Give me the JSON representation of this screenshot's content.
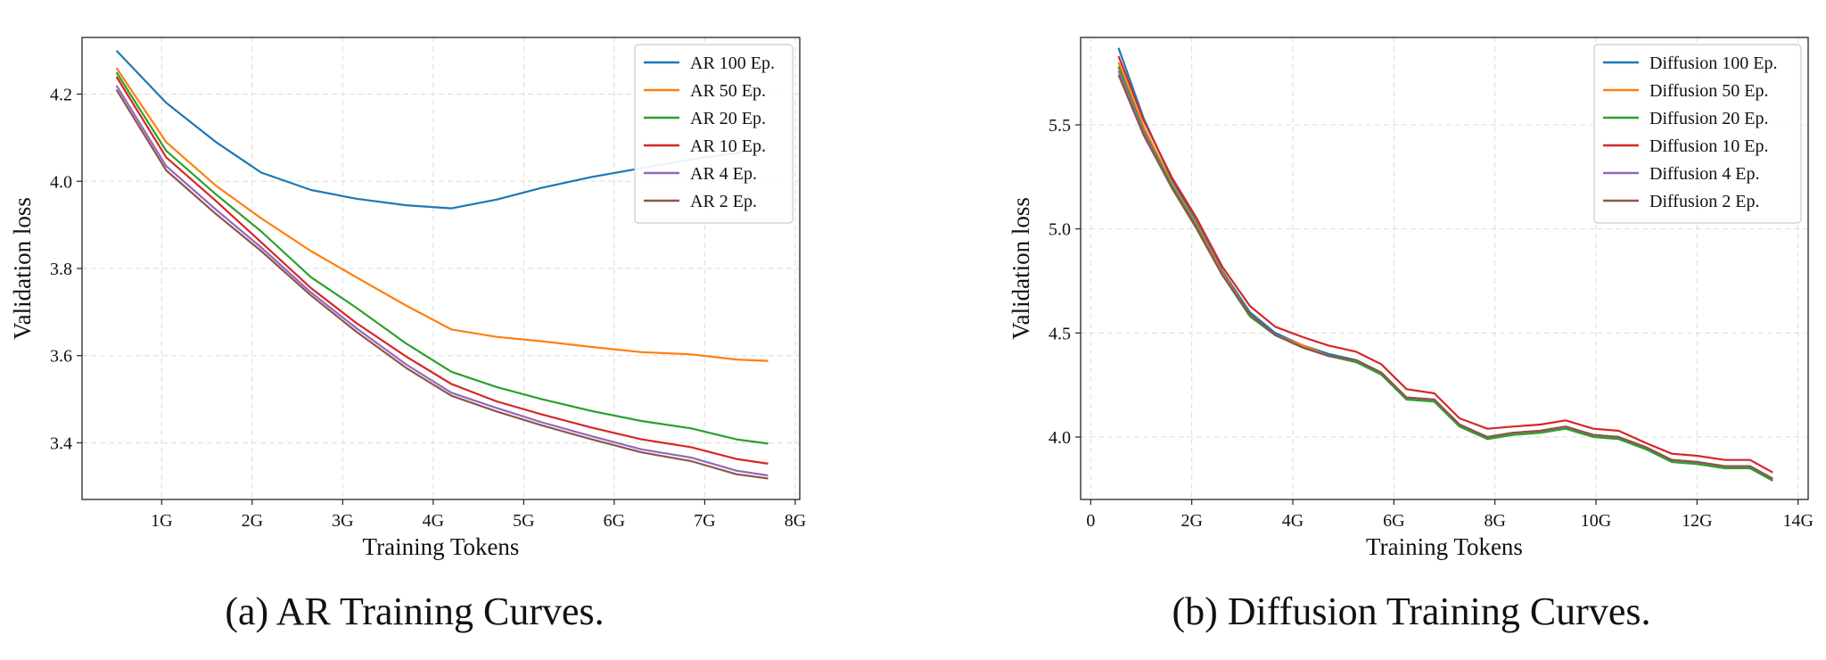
{
  "captions": {
    "a": "(a) AR Training Curves.",
    "b": "(b) Diffusion Training Curves."
  },
  "chart_data": [
    {
      "type": "line",
      "title": "",
      "xlabel": "Training Tokens",
      "ylabel": "Validation loss",
      "xlim": [
        0.12,
        8.05
      ],
      "ylim": [
        3.27,
        4.33
      ],
      "xticks": [
        1,
        2,
        3,
        4,
        5,
        6,
        7,
        8
      ],
      "xtick_labels": [
        "1G",
        "2G",
        "3G",
        "4G",
        "5G",
        "6G",
        "7G",
        "8G"
      ],
      "yticks": [
        3.4,
        3.6,
        3.8,
        4.0,
        4.2
      ],
      "ytick_labels": [
        "3.4",
        "3.6",
        "3.8",
        "4.0",
        "4.2"
      ],
      "grid": true,
      "legend_position": "top-right",
      "x": [
        0.5,
        1.05,
        1.6,
        2.1,
        2.65,
        3.15,
        3.7,
        4.2,
        4.7,
        5.2,
        5.75,
        6.3,
        6.85,
        7.35,
        7.7
      ],
      "series": [
        {
          "name": "AR 100 Ep.",
          "color": "#1f77b4",
          "values": [
            4.3,
            4.18,
            4.09,
            4.02,
            3.98,
            3.96,
            3.945,
            3.938,
            3.958,
            3.985,
            4.01,
            4.03,
            4.05,
            4.065,
            4.075
          ]
        },
        {
          "name": "AR 50 Ep.",
          "color": "#ff7f0e",
          "values": [
            4.26,
            4.09,
            3.99,
            3.915,
            3.84,
            3.78,
            3.715,
            3.66,
            3.643,
            3.633,
            3.62,
            3.608,
            3.603,
            3.591,
            3.588
          ]
        },
        {
          "name": "AR 20 Ep.",
          "color": "#2ca02c",
          "values": [
            4.25,
            4.07,
            3.97,
            3.885,
            3.78,
            3.71,
            3.628,
            3.563,
            3.528,
            3.5,
            3.473,
            3.45,
            3.433,
            3.408,
            3.398
          ]
        },
        {
          "name": "AR 10 Ep.",
          "color": "#d62728",
          "values": [
            4.24,
            4.055,
            3.955,
            3.86,
            3.755,
            3.675,
            3.598,
            3.535,
            3.495,
            3.465,
            3.435,
            3.408,
            3.39,
            3.363,
            3.352
          ]
        },
        {
          "name": "AR 4 Ep.",
          "color": "#9467bd",
          "values": [
            4.22,
            4.035,
            3.935,
            3.848,
            3.745,
            3.663,
            3.58,
            3.515,
            3.48,
            3.447,
            3.415,
            3.385,
            3.366,
            3.336,
            3.325
          ]
        },
        {
          "name": "AR 2 Ep.",
          "color": "#8c564b",
          "values": [
            4.21,
            4.025,
            3.925,
            3.84,
            3.738,
            3.655,
            3.572,
            3.508,
            3.472,
            3.44,
            3.408,
            3.378,
            3.358,
            3.328,
            3.318
          ]
        }
      ]
    },
    {
      "type": "line",
      "title": "",
      "xlabel": "Training Tokens",
      "ylabel": "Validation loss",
      "xlim": [
        -0.2,
        14.2
      ],
      "ylim": [
        3.7,
        5.92
      ],
      "xticks": [
        0,
        2,
        4,
        6,
        8,
        10,
        12,
        14
      ],
      "xtick_labels": [
        "0",
        "2G",
        "4G",
        "6G",
        "8G",
        "10G",
        "12G",
        "14G"
      ],
      "yticks": [
        4.0,
        4.5,
        5.0,
        5.5
      ],
      "ytick_labels": [
        "4.0",
        "4.5",
        "5.0",
        "5.5"
      ],
      "grid": true,
      "legend_position": "top-right",
      "x": [
        0.55,
        1.05,
        1.6,
        2.1,
        2.6,
        3.15,
        3.65,
        4.2,
        4.7,
        5.25,
        5.75,
        6.25,
        6.8,
        7.3,
        7.85,
        8.35,
        8.9,
        9.4,
        9.95,
        10.45,
        11.0,
        11.5,
        12.0,
        12.55,
        13.05,
        13.5
      ],
      "series": [
        {
          "name": "Diffusion 100 Ep.",
          "color": "#1f77b4",
          "values": [
            5.87,
            5.53,
            5.24,
            5.03,
            4.8,
            4.6,
            4.5,
            4.44,
            4.4,
            4.37,
            4.31,
            4.19,
            4.18,
            4.06,
            4.0,
            4.02,
            4.03,
            4.05,
            4.01,
            4.0,
            3.95,
            3.89,
            3.88,
            3.86,
            3.86,
            3.8
          ]
        },
        {
          "name": "Diffusion 50 Ep.",
          "color": "#ff7f0e",
          "values": [
            5.8,
            5.49,
            5.22,
            5.02,
            4.79,
            4.59,
            4.49,
            4.44,
            4.39,
            4.37,
            4.3,
            4.19,
            4.18,
            4.06,
            4.0,
            4.02,
            4.03,
            4.05,
            4.01,
            4.0,
            3.94,
            3.89,
            3.88,
            3.86,
            3.86,
            3.8
          ]
        },
        {
          "name": "Diffusion 20 Ep.",
          "color": "#2ca02c",
          "values": [
            5.78,
            5.47,
            5.21,
            5.01,
            4.78,
            4.58,
            4.49,
            4.43,
            4.39,
            4.36,
            4.3,
            4.18,
            4.17,
            4.05,
            3.99,
            4.01,
            4.02,
            4.04,
            4.0,
            3.99,
            3.94,
            3.88,
            3.87,
            3.85,
            3.85,
            3.79
          ]
        },
        {
          "name": "Diffusion 10 Ep.",
          "color": "#d62728",
          "values": [
            5.83,
            5.52,
            5.25,
            5.05,
            4.82,
            4.63,
            4.53,
            4.48,
            4.44,
            4.41,
            4.35,
            4.23,
            4.21,
            4.09,
            4.04,
            4.05,
            4.06,
            4.08,
            4.04,
            4.03,
            3.97,
            3.92,
            3.91,
            3.89,
            3.89,
            3.83
          ]
        },
        {
          "name": "Diffusion 4 Ep.",
          "color": "#9467bd",
          "values": [
            5.76,
            5.46,
            5.2,
            5.0,
            4.78,
            4.59,
            4.49,
            4.43,
            4.39,
            4.37,
            4.31,
            4.19,
            4.18,
            4.06,
            4.0,
            4.02,
            4.03,
            4.05,
            4.01,
            4.0,
            3.95,
            3.89,
            3.88,
            3.86,
            3.86,
            3.8
          ]
        },
        {
          "name": "Diffusion 2 Ep.",
          "color": "#8c564b",
          "values": [
            5.74,
            5.45,
            5.2,
            5.0,
            4.78,
            4.59,
            4.49,
            4.43,
            4.39,
            4.37,
            4.31,
            4.19,
            4.18,
            4.06,
            4.0,
            4.02,
            4.03,
            4.05,
            4.01,
            4.0,
            3.95,
            3.89,
            3.88,
            3.86,
            3.86,
            3.8
          ]
        }
      ]
    }
  ]
}
